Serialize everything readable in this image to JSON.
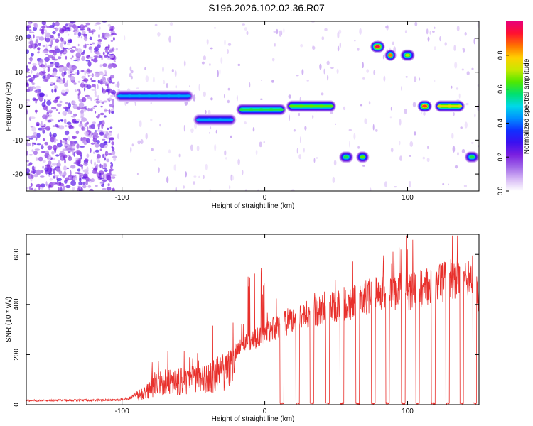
{
  "title": "S196.2026.102.02.36.R07",
  "colors": {
    "snr_line": "#e8302c",
    "colormap": [
      "#ffffff",
      "#d6b8f5",
      "#a066e8",
      "#7a1fe0",
      "#3a10f0",
      "#1030ff",
      "#0090ff",
      "#00d8e8",
      "#00e070",
      "#50e800",
      "#c8e800",
      "#ffd000",
      "#ff7000",
      "#ff1030",
      "#e8007a"
    ]
  },
  "chart_data": [
    {
      "type": "heatmap",
      "name": "spectrogram",
      "xlabel": "Height of straight line (km)",
      "ylabel": "Frequency (Hz)",
      "xlim": [
        -167,
        150
      ],
      "ylim": [
        -25,
        25
      ],
      "xticks": [
        -100,
        0,
        100
      ],
      "xtick_labels": [
        "-100",
        "0",
        "100"
      ],
      "yticks": [
        -20,
        -10,
        0,
        10,
        20
      ],
      "ytick_labels": [
        "-20",
        "-10",
        "0",
        "10",
        "20"
      ],
      "colorbar": {
        "label": "Normalized spectral amplitude",
        "range": [
          0,
          1
        ],
        "ticks": [
          0,
          0.2,
          0.4,
          0.6,
          0.8
        ],
        "tick_labels": [
          "0.0",
          "0.2",
          "0.4",
          "0.6",
          "0.8"
        ]
      },
      "segments": [
        {
          "x": [
            -105,
            -50
          ],
          "freq": 3,
          "amp": 0.45
        },
        {
          "x": [
            -50,
            -20
          ],
          "freq": -4,
          "amp": 0.45
        },
        {
          "x": [
            -20,
            15
          ],
          "freq": -1,
          "amp": 0.6
        },
        {
          "x": [
            15,
            50
          ],
          "freq": 0,
          "amp": 0.65
        },
        {
          "x": [
            52,
            62
          ],
          "freq": -15,
          "amp": 0.6
        },
        {
          "x": [
            64,
            73
          ],
          "freq": -15,
          "amp": 0.65
        },
        {
          "x": [
            74,
            84
          ],
          "freq": 17.5,
          "amp": 0.95
        },
        {
          "x": [
            84,
            92
          ],
          "freq": 15,
          "amp": 0.85
        },
        {
          "x": [
            95,
            105
          ],
          "freq": 15,
          "amp": 0.7
        },
        {
          "x": [
            107,
            117
          ],
          "freq": 0,
          "amp": 0.9
        },
        {
          "x": [
            119,
            140
          ],
          "freq": 0,
          "amp": 0.75
        },
        {
          "x": [
            140,
            150
          ],
          "freq": -15,
          "amp": 0.6
        }
      ]
    },
    {
      "type": "line",
      "name": "snr",
      "xlabel": "Height of straight line (km)",
      "ylabel": "SNR (10 * v/v)",
      "xlim": [
        -167,
        150
      ],
      "ylim": [
        0,
        680
      ],
      "xticks": [
        -100,
        0,
        100
      ],
      "xtick_labels": [
        "-100",
        "0",
        "100"
      ],
      "yticks": [
        0,
        200,
        400,
        600
      ],
      "ytick_labels": [
        "0",
        "200",
        "400",
        "600"
      ],
      "envelope": {
        "x": [
          -167,
          -105,
          -95,
          -82,
          -75,
          -60,
          -40,
          -20,
          0,
          20,
          40,
          60,
          80,
          100,
          120,
          140,
          150
        ],
        "y": [
          20,
          22,
          30,
          90,
          140,
          150,
          160,
          250,
          330,
          400,
          440,
          470,
          520,
          520,
          560,
          600,
          500
        ]
      },
      "dropouts": [
        12,
        23,
        33,
        44,
        54,
        65,
        76,
        86,
        97,
        107,
        118,
        128,
        138,
        147
      ]
    }
  ]
}
